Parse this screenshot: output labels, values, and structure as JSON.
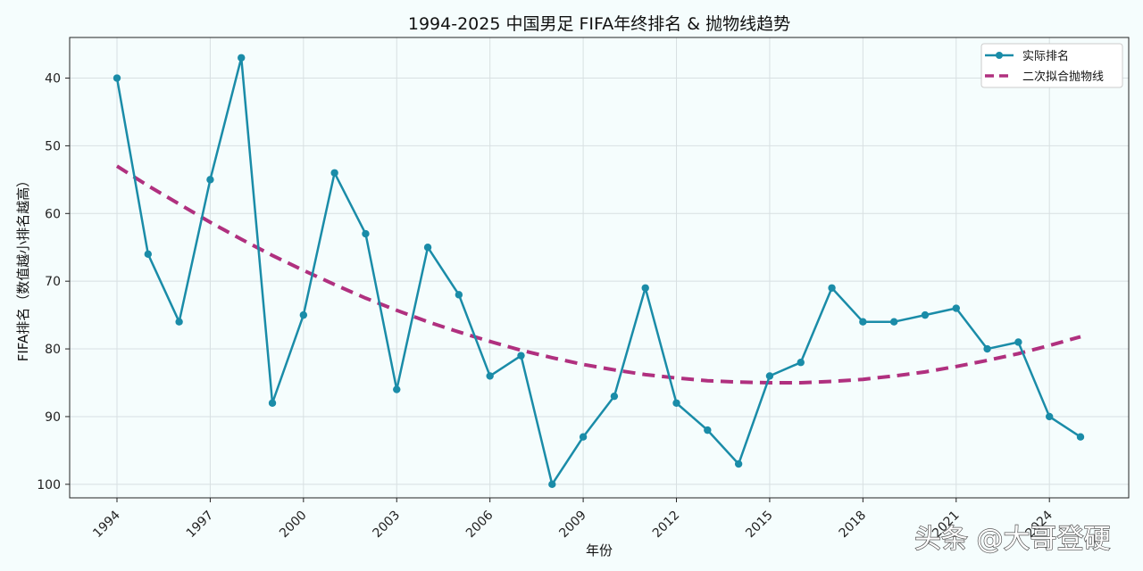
{
  "chart_data": {
    "type": "line",
    "title": "1994-2025 中国男足 FIFA年终排名 & 抛物线趋势",
    "xlabel": "年份",
    "ylabel": "FIFA排名（数值越小排名越高）",
    "x": [
      1994,
      1995,
      1996,
      1997,
      1998,
      1999,
      2000,
      2001,
      2002,
      2003,
      2004,
      2005,
      2006,
      2007,
      2008,
      2009,
      2010,
      2011,
      2012,
      2013,
      2014,
      2015,
      2016,
      2017,
      2018,
      2019,
      2020,
      2021,
      2022,
      2023,
      2024,
      2025
    ],
    "x_ticks": [
      "1994",
      "1997",
      "2000",
      "2003",
      "2006",
      "2009",
      "2012",
      "2015",
      "2018",
      "2021",
      "2024"
    ],
    "y_ticks": [
      "40",
      "50",
      "60",
      "70",
      "80",
      "90",
      "100"
    ],
    "ylim": [
      102,
      34
    ],
    "y_inverted": true,
    "grid": true,
    "legend_position": "top-right",
    "series": [
      {
        "name": "实际排名",
        "style": "solid-markers",
        "color": "#1a8ca8",
        "values": [
          40,
          66,
          76,
          55,
          37,
          88,
          75,
          54,
          63,
          86,
          65,
          72,
          84,
          81,
          100,
          93,
          87,
          71,
          88,
          92,
          97,
          84,
          82,
          71,
          76,
          76,
          75,
          74,
          80,
          79,
          90,
          93
        ]
      },
      {
        "name": "二次拟合抛物线",
        "style": "dashed",
        "color": "#b0307f",
        "fit": "quadratic",
        "values": [
          53.0,
          55.9,
          58.6,
          61.3,
          63.8,
          66.2,
          68.4,
          70.5,
          72.5,
          74.3,
          76.0,
          77.5,
          78.9,
          80.2,
          81.3,
          82.3,
          83.1,
          83.8,
          84.3,
          84.7,
          84.9,
          85.0,
          85.0,
          84.8,
          84.5,
          84.0,
          83.4,
          82.6,
          81.7,
          80.7,
          79.5,
          78.2
        ]
      }
    ]
  },
  "watermark": "头条 @大哥登硬"
}
